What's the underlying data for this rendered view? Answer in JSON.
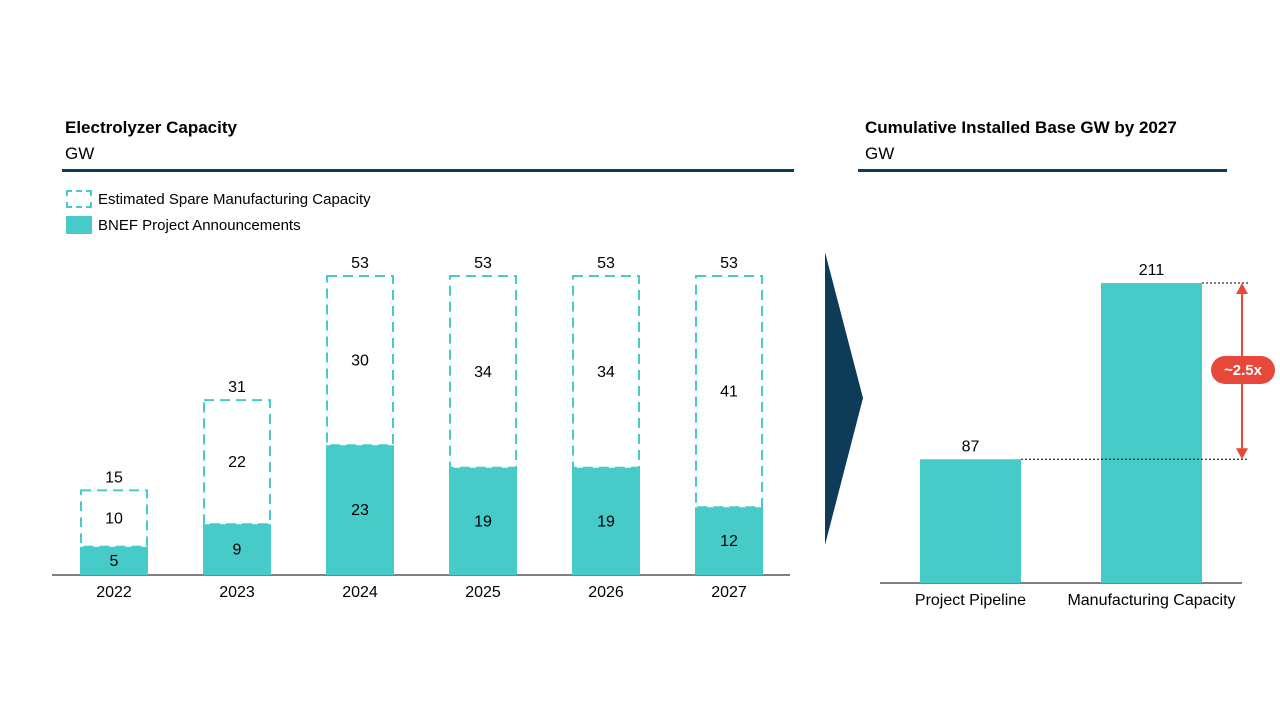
{
  "left_panel": {
    "title": "Electrolyzer Capacity",
    "unit": "GW",
    "legend": [
      {
        "label": "Estimated Spare Manufacturing Capacity",
        "style": "dashed",
        "color": "#46cbc9"
      },
      {
        "label": "BNEF Project Announcements",
        "style": "solid",
        "color": "#46cbc9"
      }
    ]
  },
  "right_panel": {
    "title": "Cumulative Installed Base GW by 2027",
    "unit": "GW",
    "multiplier_label": "~2.5x"
  },
  "colors": {
    "bar": "#46cbc9",
    "rule": "#0d3b58",
    "arrow": "#e8483a",
    "chevron": "#0d3b58"
  },
  "chart_data": [
    {
      "type": "bar",
      "stacked": true,
      "categories": [
        "2022",
        "2023",
        "2024",
        "2025",
        "2026",
        "2027"
      ],
      "series": [
        {
          "name": "BNEF Project Announcements",
          "values": [
            5,
            9,
            23,
            19,
            19,
            12
          ]
        },
        {
          "name": "Estimated Spare Manufacturing Capacity",
          "values": [
            10,
            22,
            30,
            34,
            34,
            41
          ]
        }
      ],
      "totals": [
        15,
        31,
        53,
        53,
        53,
        53
      ],
      "ylim": [
        0,
        53
      ],
      "title": "Electrolyzer Capacity",
      "ylabel": "GW",
      "grid": false,
      "legend_position": "top-left"
    },
    {
      "type": "bar",
      "categories": [
        "Project Pipeline",
        "Manufacturing Capacity"
      ],
      "values": [
        87,
        211
      ],
      "ylim": [
        0,
        211
      ],
      "title": "Cumulative Installed Base GW by 2027",
      "ylabel": "GW",
      "annotation": "~2.5x",
      "grid": false
    }
  ]
}
